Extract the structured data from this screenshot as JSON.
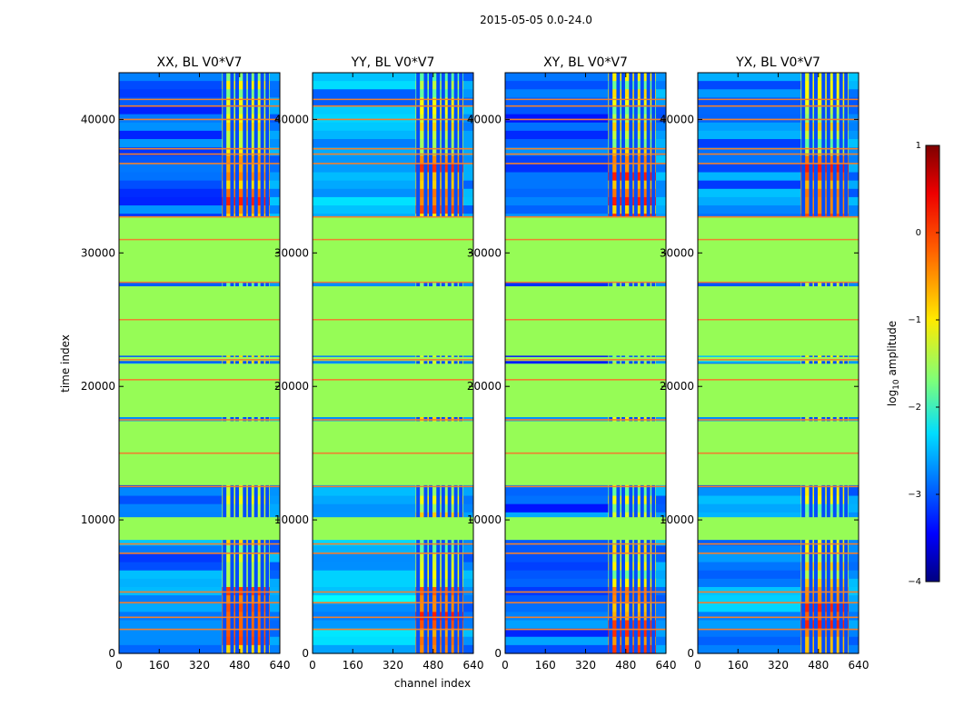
{
  "chart_data": {
    "type": "heatmap",
    "title": "2015-05-05 0.0-24.0",
    "xlabel": "channel index",
    "ylabel": "time index",
    "xlim": [
      0,
      640
    ],
    "ylim": [
      0,
      43500
    ],
    "xticks": [
      0,
      160,
      320,
      480,
      640
    ],
    "yticks": [
      0,
      10000,
      20000,
      30000,
      40000
    ],
    "panels": [
      {
        "title": "XX, BL V0*V7",
        "low_band_level": 0.0
      },
      {
        "title": "YY, BL V0*V7",
        "low_band_level": 0.06
      },
      {
        "title": "XY, BL V0*V7",
        "low_band_level": -0.02
      },
      {
        "title": "YX, BL V0*V7",
        "low_band_level": 0.03
      }
    ],
    "band_channels": {
      "low": [
        0,
        410
      ],
      "high": [
        410,
        600
      ],
      "edge": [
        600,
        640
      ]
    },
    "band_columns": [
      420,
      450,
      470,
      500,
      520,
      545,
      570,
      590
    ],
    "flagged_time_ranges": [
      [
        27800,
        32700
      ],
      [
        22300,
        27500
      ],
      [
        17700,
        21700
      ],
      [
        12600,
        17400
      ],
      [
        8500,
        10200
      ],
      [
        21900,
        22200
      ],
      [
        18200,
        18500
      ]
    ],
    "line_rows": [
      41500,
      41000,
      40000,
      37800,
      37400,
      36700,
      32700,
      31000,
      27800,
      25000,
      22000,
      20500,
      17500,
      15000,
      12500,
      8200,
      7500,
      4600,
      3800,
      2700,
      1800
    ],
    "colorbar": {
      "label": "log10 amplitude",
      "label_text": "log",
      "label_sub": "10",
      "label_suffix": " amplitude",
      "range": [
        -4,
        1
      ],
      "ticks": [
        1,
        0,
        -1,
        -2,
        -3,
        -4
      ],
      "tick_labels": [
        "1",
        "0",
        "−1",
        "−2",
        "−3",
        "−4"
      ],
      "colormap": "jet"
    },
    "colors": {
      "flag_fill": "#96fc56",
      "flag_line": "#ef8030"
    }
  }
}
